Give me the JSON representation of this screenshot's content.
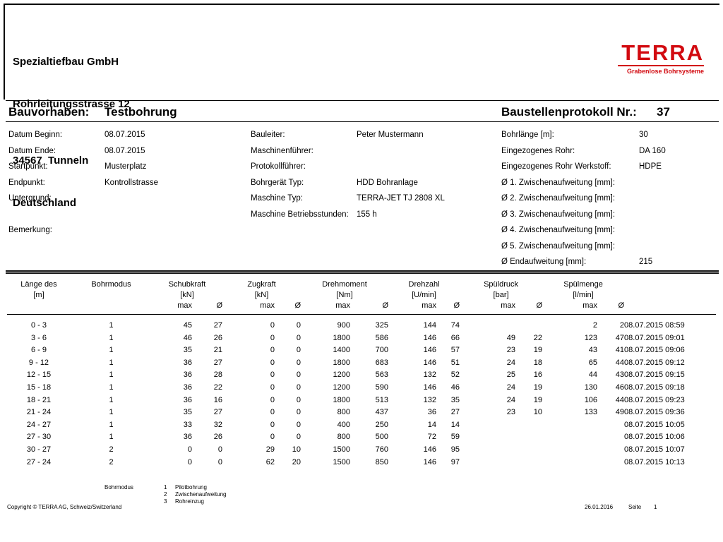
{
  "colors": {
    "brand_red": "#d20a10"
  },
  "header": {
    "company_line1": "Spezialtiefbau GmbH",
    "company_line2": "Rohrleitungsstrasse 12",
    "company_line3": "34567  Tunneln",
    "company_line4": "Deutschland",
    "logo_text": "TERRA",
    "logo_tagline": "Grabenlose Bohrsysteme"
  },
  "title": {
    "project_label": "Bauvorhaben:",
    "project_value": "Testbohrung",
    "protocol_label": "Baustellenprotokoll Nr.:",
    "protocol_number": "37"
  },
  "info_left": [
    {
      "label": "Datum Beginn:",
      "value": "08.07.2015"
    },
    {
      "label": "Datum Ende:",
      "value": "08.07.2015"
    },
    {
      "label": "Startpunkt:",
      "value": "Musterplatz"
    },
    {
      "label": "Endpunkt:",
      "value": "Kontrollstrasse"
    },
    {
      "label": "Untergrund:",
      "value": ""
    },
    {
      "label": "",
      "value": ""
    },
    {
      "label": "Bemerkung:",
      "value": ""
    }
  ],
  "info_middle": [
    {
      "label": "Bauleiter:",
      "value": "Peter Mustermann"
    },
    {
      "label": "Maschinenführer:",
      "value": ""
    },
    {
      "label": "Protokollführer:",
      "value": ""
    },
    {
      "label": "Bohrgerät Typ:",
      "value": "HDD Bohranlage"
    },
    {
      "label": "Maschine Typ:",
      "value": "TERRA-JET TJ 2808 XL"
    },
    {
      "label": "Maschine Betriebsstunden:",
      "value": "155 h"
    }
  ],
  "info_right": [
    {
      "label": "Bohrlänge [m]:",
      "value": "30"
    },
    {
      "label": "Eingezogenes Rohr:",
      "value": "DA 160"
    },
    {
      "label": "Eingezogenes Rohr Werkstoff:",
      "value": "HDPE"
    },
    {
      "label": "Ø 1. Zwischenaufweitung [mm]:",
      "value": ""
    },
    {
      "label": "Ø 2. Zwischenaufweitung [mm]:",
      "value": ""
    },
    {
      "label": "Ø 3. Zwischenaufweitung [mm]:",
      "value": ""
    },
    {
      "label": "Ø 4. Zwischenaufweitung [mm]:",
      "value": ""
    },
    {
      "label": "Ø 5. Zwischenaufweitung [mm]:",
      "value": ""
    },
    {
      "label": "Ø Endaufweitung [mm]:",
      "value": "215"
    }
  ],
  "table": {
    "groups": [
      {
        "title": "Länge des",
        "unit": "[m]"
      },
      {
        "title": "Bohrmodus",
        "unit": ""
      },
      {
        "title": "Schubkraft",
        "unit": "[kN]"
      },
      {
        "title": "Zugkraft",
        "unit": "[kN]"
      },
      {
        "title": "Drehmoment",
        "unit": "[Nm]"
      },
      {
        "title": "Drehzahl",
        "unit": "[U/min]"
      },
      {
        "title": "Spüldruck",
        "unit": "[bar]"
      },
      {
        "title": "Spülmenge",
        "unit": "[l/min]"
      }
    ],
    "sub_headers": {
      "max": "max",
      "avg": "Ø"
    },
    "rows": [
      [
        "0 - 3",
        "1",
        "45",
        "27",
        "0",
        "0",
        "900",
        "325",
        "144",
        "74",
        "",
        "",
        "2",
        "2",
        "08.07.2015 08:59"
      ],
      [
        "3 - 6",
        "1",
        "46",
        "26",
        "0",
        "0",
        "1800",
        "586",
        "146",
        "66",
        "49",
        "22",
        "123",
        "47",
        "08.07.2015 09:01"
      ],
      [
        "6 - 9",
        "1",
        "35",
        "21",
        "0",
        "0",
        "1400",
        "700",
        "146",
        "57",
        "23",
        "19",
        "43",
        "41",
        "08.07.2015 09:06"
      ],
      [
        "9 - 12",
        "1",
        "36",
        "27",
        "0",
        "0",
        "1800",
        "683",
        "146",
        "51",
        "24",
        "18",
        "65",
        "44",
        "08.07.2015 09:12"
      ],
      [
        "12 - 15",
        "1",
        "36",
        "28",
        "0",
        "0",
        "1200",
        "563",
        "132",
        "52",
        "25",
        "16",
        "44",
        "43",
        "08.07.2015 09:15"
      ],
      [
        "15 - 18",
        "1",
        "36",
        "22",
        "0",
        "0",
        "1200",
        "590",
        "146",
        "46",
        "24",
        "19",
        "130",
        "46",
        "08.07.2015 09:18"
      ],
      [
        "18 - 21",
        "1",
        "36",
        "16",
        "0",
        "0",
        "1800",
        "513",
        "132",
        "35",
        "24",
        "19",
        "106",
        "44",
        "08.07.2015 09:23"
      ],
      [
        "21 - 24",
        "1",
        "35",
        "27",
        "0",
        "0",
        "800",
        "437",
        "36",
        "27",
        "23",
        "10",
        "133",
        "49",
        "08.07.2015 09:36"
      ],
      [
        "24 - 27",
        "1",
        "33",
        "32",
        "0",
        "0",
        "400",
        "250",
        "14",
        "14",
        "",
        "",
        "",
        "",
        "08.07.2015 10:05"
      ],
      [
        "27 - 30",
        "1",
        "36",
        "26",
        "0",
        "0",
        "800",
        "500",
        "72",
        "59",
        "",
        "",
        "",
        "",
        "08.07.2015 10:06"
      ],
      [
        "30 - 27",
        "2",
        "0",
        "0",
        "29",
        "10",
        "1500",
        "760",
        "146",
        "95",
        "",
        "",
        "",
        "",
        "08.07.2015 10:07"
      ],
      [
        "27 - 24",
        "2",
        "0",
        "0",
        "62",
        "20",
        "1500",
        "850",
        "146",
        "97",
        "",
        "",
        "",
        "",
        "08.07.2015 10:13"
      ]
    ]
  },
  "legend": {
    "title": "Bohrmodus",
    "items": [
      {
        "num": "1",
        "label": "Pilotbohrung"
      },
      {
        "num": "2",
        "label": "Zwischenaufweitung"
      },
      {
        "num": "3",
        "label": "Rohreinzug"
      }
    ]
  },
  "footer": {
    "copyright": "Copyright © TERRA AG, Schweiz/Switzerland",
    "date": "26.01.2016",
    "page_label": "Seite",
    "page_number": "1"
  }
}
